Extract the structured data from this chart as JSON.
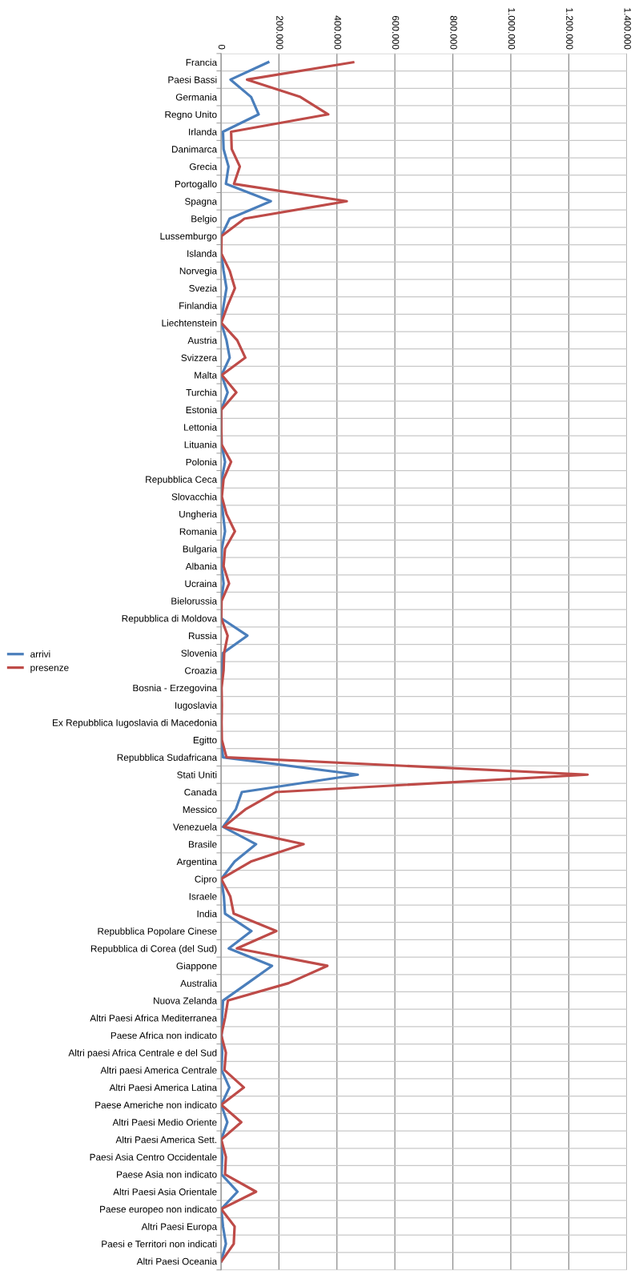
{
  "chart_data": {
    "type": "line",
    "orientation": "horizontal",
    "categories": [
      "Francia",
      "Paesi Bassi",
      "Germania",
      "Regno Unito",
      "Irlanda",
      "Danimarca",
      "Grecia",
      "Portogallo",
      "Spagna",
      "Belgio",
      "Lussemburgo",
      "Islanda",
      "Norvegia",
      "Svezia",
      "Finlandia",
      "Liechtenstein",
      "Austria",
      "Svizzera",
      "Malta",
      "Turchia",
      "Estonia",
      "Lettonia",
      "Lituania",
      "Polonia",
      "Repubblica Ceca",
      "Slovacchia",
      "Ungheria",
      "Romania",
      "Bulgaria",
      "Albania",
      "Ucraina",
      "Bielorussia",
      "Repubblica di Moldova",
      "Russia",
      "Slovenia",
      "Croazia",
      "Bosnia - Erzegovina",
      "Iugoslavia",
      "Ex Repubblica Iugoslavia di Macedonia",
      "Egitto",
      "Repubblica Sudafricana",
      "Stati Uniti",
      "Canada",
      "Messico",
      "Venezuela",
      "Brasile",
      "Argentina",
      "Cipro",
      "Israele",
      "India",
      "Repubblica Popolare Cinese",
      "Repubblica di Corea (del Sud)",
      "Giappone",
      "Australia",
      "Nuova Zelanda",
      "Altri Paesi Africa Mediterranea",
      "Paese Africa non indicato",
      "Altri paesi Africa Centrale e del Sud",
      "Altri paesi America Centrale",
      "Altri Paesi America Latina",
      "Paese Americhe non indicato",
      "Altri Paesi Medio Oriente",
      "Altri Paesi America Sett.",
      "Paesi Asia Centro Occidentale",
      "Paese Asia non indicato",
      "Altri Paesi Asia Orientale",
      "Paese europeo non indicato",
      "Altri Paesi Europa",
      "Paesi e Territori non indicati",
      "Altri Paesi Oceania"
    ],
    "series": [
      {
        "name": "arrivi",
        "color": "#4a7ebb",
        "values": [
          163000,
          33000,
          104000,
          130000,
          7000,
          9000,
          26000,
          17000,
          172000,
          30000,
          1000,
          1000,
          9000,
          19000,
          9000,
          1000,
          19000,
          30000,
          2000,
          23000,
          1000,
          1000,
          2000,
          14000,
          3000,
          1000,
          7000,
          14000,
          3000,
          2000,
          9000,
          1000,
          1000,
          91000,
          7000,
          2000,
          1000,
          1000,
          1000,
          1000,
          7000,
          472000,
          72000,
          51000,
          7000,
          121000,
          47000,
          1000,
          10000,
          14000,
          105000,
          27000,
          176000,
          92000,
          7000,
          4000,
          2000,
          4000,
          2000,
          29000,
          1000,
          22000,
          1000,
          4000,
          2000,
          57000,
          1000,
          7000,
          17000,
          1000
        ]
      },
      {
        "name": "presenze",
        "color": "#be4b48",
        "values": [
          456000,
          90000,
          274000,
          370000,
          35000,
          37000,
          65000,
          45000,
          434000,
          81000,
          2000,
          1000,
          30000,
          48000,
          23000,
          1000,
          56000,
          84000,
          3000,
          53000,
          1000,
          1000,
          2000,
          35000,
          9000,
          3000,
          19000,
          48000,
          14000,
          9000,
          28000,
          2000,
          1000,
          23000,
          11000,
          9000,
          2000,
          3000,
          2000,
          3000,
          19000,
          1265000,
          190000,
          84000,
          10000,
          285000,
          103000,
          1000,
          32000,
          44000,
          191000,
          55000,
          367000,
          233000,
          24000,
          14000,
          1000,
          17000,
          12000,
          79000,
          1000,
          70000,
          1000,
          17000,
          14000,
          121000,
          1000,
          47000,
          44000,
          2000
        ]
      }
    ],
    "xlim": [
      0,
      1400000
    ],
    "xticks": [
      {
        "value": 0,
        "label": "0"
      },
      {
        "value": 200000,
        "label": "200.000"
      },
      {
        "value": 400000,
        "label": "400.000"
      },
      {
        "value": 600000,
        "label": "600.000"
      },
      {
        "value": 800000,
        "label": "800.000"
      },
      {
        "value": 1000000,
        "label": "1.000.000"
      },
      {
        "value": 1200000,
        "label": "1.200.000"
      },
      {
        "value": 1400000,
        "label": "1.400.000"
      }
    ],
    "grid": true,
    "legend": "left",
    "marker": "none",
    "line_style": "solid"
  }
}
